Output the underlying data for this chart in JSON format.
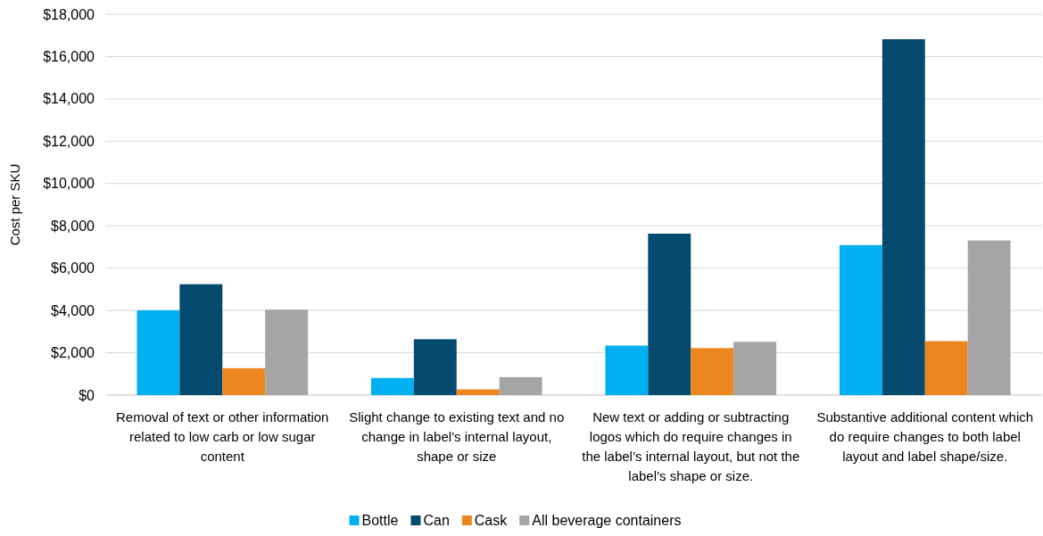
{
  "chart_data": {
    "type": "bar",
    "ylabel": "Cost per SKU",
    "categories": [
      "Removal of text or other information related to low carb or low sugar content",
      "Slight change to existing text and no change in label’s internal layout, shape or size",
      "New text or adding or subtracting logos which do require changes in the label’s internal layout, but not the label’s shape or size.",
      "Substantive additional content which do require changes to both label layout and label shape/size."
    ],
    "series": [
      {
        "name": "Bottle",
        "color": "#00b0f0",
        "values": [
          4010,
          810,
          2340,
          7090
        ]
      },
      {
        "name": "Can",
        "color": "#034a6e",
        "values": [
          5240,
          2640,
          7630,
          16820
        ]
      },
      {
        "name": "Cask",
        "color": "#ec8720",
        "values": [
          1270,
          270,
          2220,
          2550
        ]
      },
      {
        "name": "All beverage containers",
        "color": "#a5a5a5",
        "values": [
          4040,
          850,
          2520,
          7310
        ]
      }
    ],
    "ylim": [
      0,
      18000
    ],
    "yticks": [
      {
        "value": 0,
        "label": "$0"
      },
      {
        "value": 2000,
        "label": "$2,000"
      },
      {
        "value": 4000,
        "label": "$4,000"
      },
      {
        "value": 6000,
        "label": "$6,000"
      },
      {
        "value": 8000,
        "label": "$8,000"
      },
      {
        "value": 10000,
        "label": "$10,000"
      },
      {
        "value": 12000,
        "label": "$12,000"
      },
      {
        "value": 14000,
        "label": "$14,000"
      },
      {
        "value": 16000,
        "label": "$16,000"
      },
      {
        "value": 18000,
        "label": "$18,000"
      }
    ],
    "grid": "y",
    "legend": "bottom"
  }
}
